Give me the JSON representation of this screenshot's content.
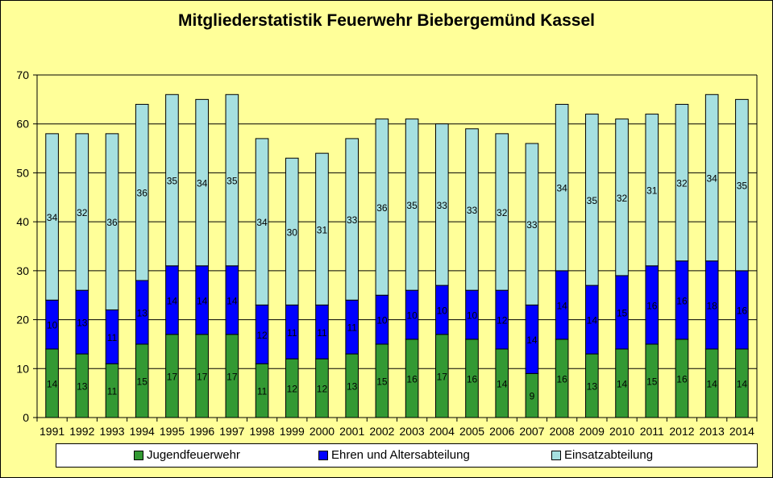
{
  "chart_data": {
    "type": "bar",
    "stacked": true,
    "title": "Mitgliederstatistik Feuerwehr Biebergemünd Kassel",
    "xlabel": "",
    "ylabel": "",
    "ylim": [
      0,
      70
    ],
    "yticks": [
      "0",
      "10",
      "20",
      "30",
      "40",
      "50",
      "60",
      "70"
    ],
    "grid": true,
    "legend_position": "bottom",
    "categories": [
      "1991",
      "1992",
      "1993",
      "1994",
      "1995",
      "1996",
      "1997",
      "1998",
      "1999",
      "2000",
      "2001",
      "2002",
      "2003",
      "2004",
      "2005",
      "2006",
      "2007",
      "2008",
      "2009",
      "2010",
      "2011",
      "2012",
      "2013",
      "2014"
    ],
    "series": [
      {
        "name": "Jugendfeuerwehr",
        "color": "#339933",
        "values": [
          14,
          13,
          11,
          15,
          17,
          17,
          17,
          11,
          12,
          12,
          13,
          15,
          16,
          17,
          16,
          14,
          9,
          16,
          13,
          14,
          15,
          16,
          14,
          14
        ]
      },
      {
        "name": "Ehren und Altersabteilung",
        "color": "#0000ff",
        "values": [
          10,
          13,
          11,
          13,
          14,
          14,
          14,
          12,
          11,
          11,
          11,
          10,
          10,
          10,
          10,
          12,
          14,
          14,
          14,
          15,
          16,
          16,
          18,
          16
        ]
      },
      {
        "name": "Einsatzabteilung",
        "color": "#a6e0e0",
        "values": [
          34,
          32,
          36,
          36,
          35,
          34,
          35,
          34,
          30,
          31,
          33,
          36,
          35,
          33,
          33,
          32,
          33,
          34,
          35,
          32,
          31,
          32,
          34,
          35
        ]
      }
    ]
  }
}
